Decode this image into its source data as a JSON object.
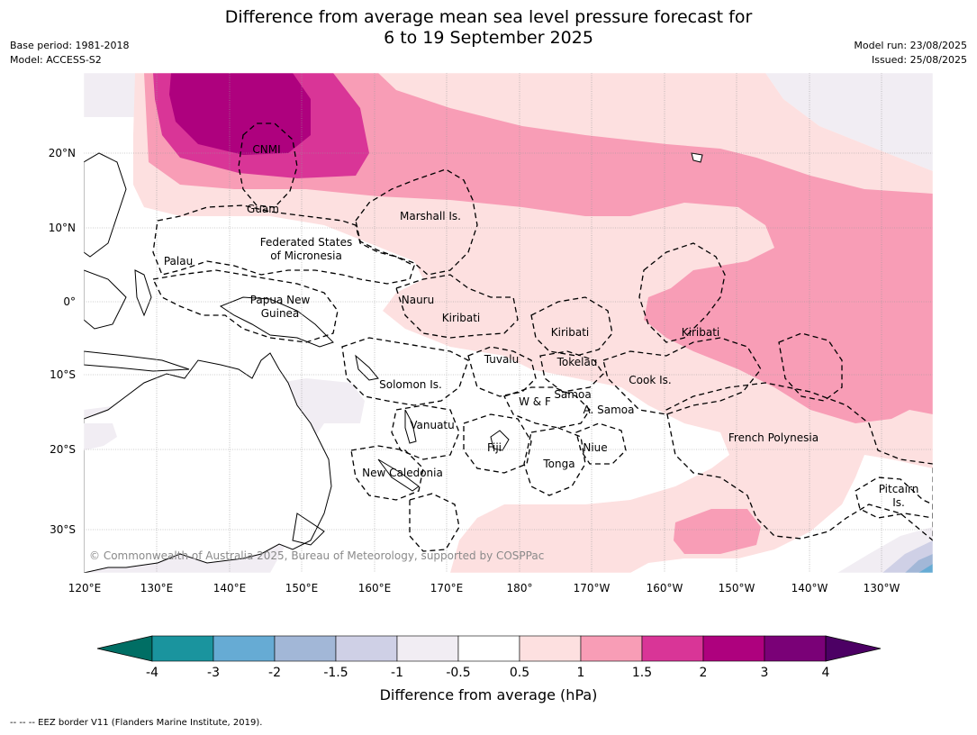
{
  "header": {
    "title_line1": "Difference from average mean sea level pressure forecast for",
    "title_line2": "6 to 19 September 2025",
    "base_period": "Base period: 1981-2018",
    "model": "Model: ACCESS-S2",
    "model_run": "Model run: 23/08/2025",
    "issued": "Issued: 25/08/2025"
  },
  "map": {
    "copyright": "© Commonwealth of Australia 2025, Bureau of Meteorology, supported by COSPPac",
    "lon_ticks": [
      "120°E",
      "130°E",
      "140°E",
      "150°E",
      "160°E",
      "170°E",
      "180°",
      "170°W",
      "160°W",
      "150°W",
      "140°W",
      "130°W"
    ],
    "lat_ticks": [
      "20°N",
      "10°N",
      "0°",
      "10°S",
      "20°S",
      "30°S"
    ],
    "eez_labels": {
      "cnmi": "CNMI",
      "guam": "Guam",
      "marshall": "Marshall Is.",
      "fsm_1": "Federated States",
      "fsm_2": "of Micronesia",
      "palau": "Palau",
      "png_1": "Papua New",
      "png_2": "Guinea",
      "nauru": "Nauru",
      "kiribati_w": "Kiribati",
      "kiribati_c": "Kiribati",
      "kiribati_e": "Kiribati",
      "tuvalu": "Tuvalu",
      "tokelau": "Tokelau",
      "cook": "Cook Is.",
      "solomon": "Solomon Is.",
      "wf": "W & F",
      "samoa": "Samoa",
      "am_samoa": "A. Samoa",
      "vanuatu": "Vanuatu",
      "fiji": "Fiji",
      "niue": "Niue",
      "tonga": "Tonga",
      "new_caledonia": "New Caledonia",
      "french_polynesia": "French Polynesia",
      "pitcairn_1": "Pitcairn",
      "pitcairn_2": "Is."
    }
  },
  "colorbar": {
    "label": "Difference from average (hPa)",
    "ticks": [
      "-4",
      "-3",
      "-2",
      "-1.5",
      "-1",
      "-0.5",
      "0.5",
      "1",
      "1.5",
      "2",
      "3",
      "4"
    ],
    "colors": {
      "below_min": "#006e64",
      "bins": [
        "#1a949e",
        "#66abd4",
        "#a2b7d7",
        "#cfd0e6",
        "#f1edf3",
        "#ffffff",
        "#fde0e0",
        "#f89db6",
        "#d93597",
        "#ae017e",
        "#7a0177"
      ],
      "above_max": "#4c0064"
    }
  },
  "footnote": "--  --  -- EEZ border V11 (Flanders Marine Institute, 2019)."
}
